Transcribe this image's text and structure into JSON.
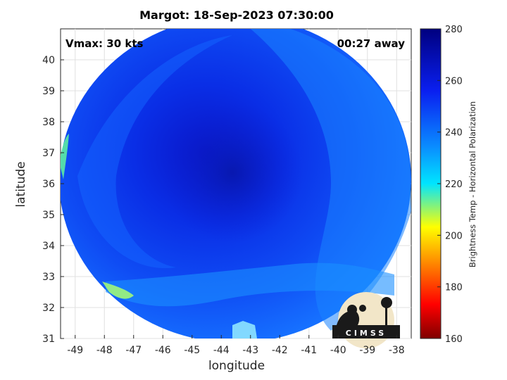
{
  "title": "Margot: 18-Sep-2023 07:30:00",
  "vmax_label": "Vmax: 30 kts",
  "away_label": "00:27 away",
  "logo_text": "CIMSS",
  "chart_data": {
    "type": "heatmap",
    "xlabel": "longitude",
    "ylabel": "latitude",
    "xlim": [
      -49.5,
      -37.5
    ],
    "ylim": [
      31,
      41
    ],
    "xticks": [
      -49,
      -48,
      -47,
      -46,
      -45,
      -44,
      -43,
      -42,
      -41,
      -40,
      -39,
      -38
    ],
    "yticks": [
      31,
      32,
      33,
      34,
      35,
      36,
      37,
      38,
      39,
      40
    ],
    "grid": true,
    "colorbar": {
      "label": "Brightness Temp - Horizontal Polarization",
      "range": [
        160,
        280
      ],
      "ticks": [
        160,
        180,
        200,
        220,
        240,
        260,
        280
      ],
      "colormap": "jet"
    },
    "storm_center": {
      "lon": -43.2,
      "lat": 36.2
    }
  }
}
